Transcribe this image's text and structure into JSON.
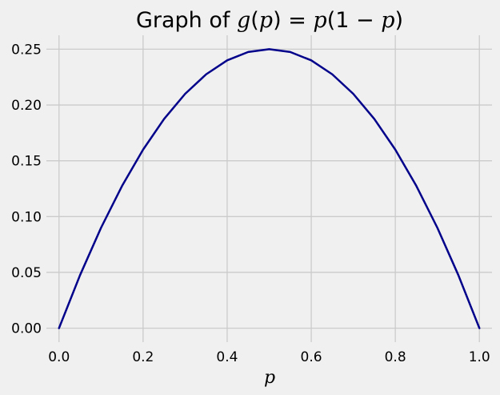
{
  "chart_data": {
    "type": "line",
    "title_prefix": "Graph of ",
    "title_formula": {
      "g": "g",
      "open1": "(",
      "p1": "p",
      "close_eq": ") = ",
      "p2": "p",
      "open2": "(1 − ",
      "p3": "p",
      "close2": ")"
    },
    "xlabel": "p",
    "ylabel": "",
    "xlim": [
      -0.03,
      1.03
    ],
    "ylim": [
      -0.0125,
      0.2625
    ],
    "xticks": [
      0.0,
      0.2,
      0.4,
      0.6,
      0.8,
      1.0
    ],
    "xtick_labels": [
      "0.0",
      "0.2",
      "0.4",
      "0.6",
      "0.8",
      "1.0"
    ],
    "yticks": [
      0.0,
      0.05,
      0.1,
      0.15,
      0.2,
      0.25
    ],
    "ytick_labels": [
      "0.00",
      "0.05",
      "0.10",
      "0.15",
      "0.20",
      "0.25"
    ],
    "grid": true,
    "line_color": "#00008b",
    "background": "#f0f0f0",
    "series": [
      {
        "x": [
          0.0,
          0.05,
          0.1,
          0.15,
          0.2,
          0.25,
          0.3,
          0.35,
          0.4,
          0.45,
          0.5,
          0.55,
          0.6,
          0.65,
          0.7,
          0.75,
          0.8,
          0.85,
          0.9,
          0.95,
          1.0
        ],
        "y": [
          0.0,
          0.0475,
          0.09,
          0.1275,
          0.16,
          0.1875,
          0.21,
          0.2275,
          0.24,
          0.2475,
          0.25,
          0.2475,
          0.24,
          0.2275,
          0.21,
          0.1875,
          0.16,
          0.1275,
          0.09,
          0.0475,
          0.0
        ]
      }
    ]
  }
}
